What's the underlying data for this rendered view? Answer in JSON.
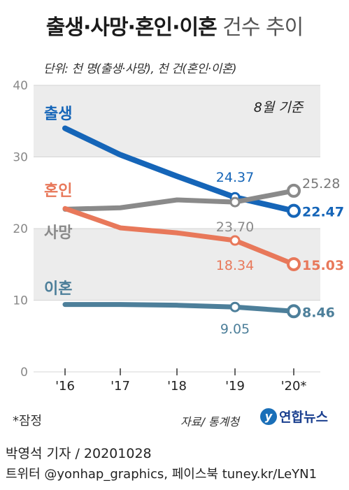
{
  "header": {
    "title_bold": "출생·사망·혼인·이혼",
    "title_light": " 건수 추이",
    "unit": "단위: 천 명(출생·사망), 천 건(혼인·이혼)"
  },
  "chart_data": {
    "type": "line",
    "annotation": "8월 기준",
    "categories": [
      "'16",
      "'17",
      "'18",
      "'19",
      "'20*"
    ],
    "ylim": [
      0,
      40
    ],
    "yticks": [
      "0",
      "10",
      "20",
      "30",
      "40"
    ],
    "series": [
      {
        "name": "출생",
        "color": "#1565b8",
        "values": [
          34.0,
          30.3,
          27.3,
          24.37,
          22.47
        ],
        "labels": {
          "3": "24.37",
          "4": "22.47"
        }
      },
      {
        "name": "사망",
        "color": "#8a8a8a",
        "values": [
          22.7,
          22.9,
          24.0,
          23.7,
          25.28
        ],
        "labels": {
          "3": "23.70",
          "4": "25.28"
        }
      },
      {
        "name": "혼인",
        "color": "#e8785a",
        "values": [
          22.8,
          20.1,
          19.4,
          18.34,
          15.03
        ],
        "labels": {
          "3": "18.34",
          "4": "15.03"
        }
      },
      {
        "name": "이혼",
        "color": "#4d7f9a",
        "values": [
          9.4,
          9.4,
          9.3,
          9.05,
          8.46
        ],
        "labels": {
          "3": "9.05",
          "4": "8.46"
        }
      }
    ]
  },
  "footer": {
    "footnote": "*잠정",
    "source": "자료/ 통계청",
    "logo_mark": "y",
    "logo_text": "연합뉴스",
    "credit": "박영석 기자 /  20201028",
    "social": "트위터 @yonhap_graphics, 페이스북 tuney.kr/LeYN1"
  }
}
